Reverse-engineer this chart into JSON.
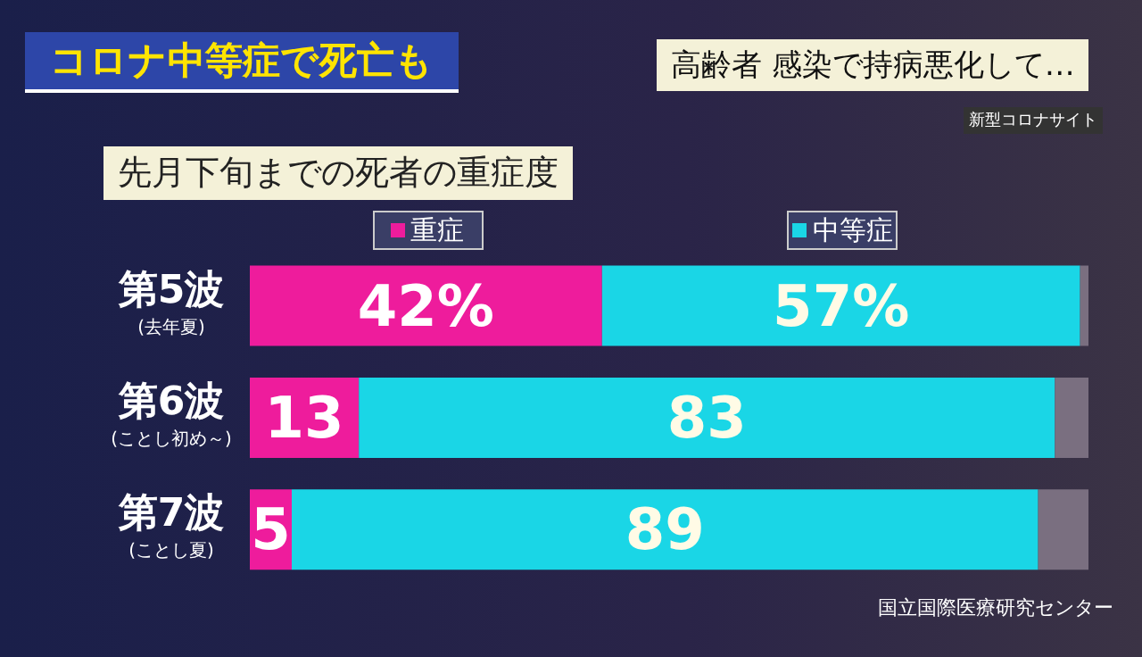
{
  "chart_data": {
    "type": "bar",
    "orientation": "horizontal",
    "stacked": true,
    "title": "コロナ中等症で死亡も",
    "subtitle": "先月下旬までの死者の重症度",
    "annotations": [
      "高齢者 感染で持病悪化して…",
      "新型コロナサイト",
      "国立国際医療研究センター"
    ],
    "categories": [
      "第5波\n(去年夏)",
      "第6波\n(ことし初め～)",
      "第7波\n(ことし夏)"
    ],
    "series": [
      {
        "name": "重症",
        "color": "#ee1c9c",
        "values": [
          42,
          13,
          5
        ],
        "value_labels": [
          "42%",
          "13",
          "5"
        ]
      },
      {
        "name": "中等症",
        "color": "#1ad6e6",
        "values": [
          57,
          83,
          89
        ],
        "value_labels": [
          "57%",
          "83",
          "89"
        ]
      },
      {
        "color": "#7a6f80",
        "values": [
          1,
          4,
          6
        ],
        "value_labels": [
          null,
          null,
          null
        ]
      }
    ],
    "legend": "top"
  }
}
